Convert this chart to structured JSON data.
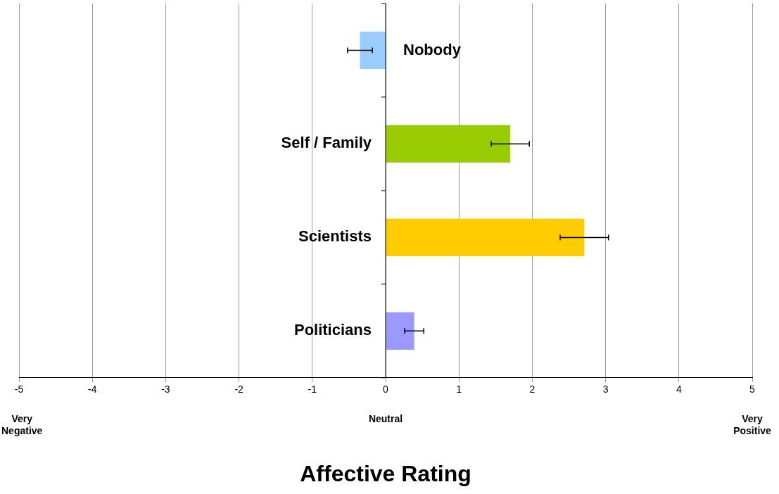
{
  "chart_data": {
    "type": "bar",
    "orientation": "horizontal",
    "xlabel": "Affective Rating",
    "categories": [
      "Nobody",
      "Self / Family",
      "Scientists",
      "Politicians"
    ],
    "values": [
      -0.35,
      1.7,
      2.71,
      0.39
    ],
    "errors": [
      0.17,
      0.26,
      0.33,
      0.13
    ],
    "colors": [
      "#99ccff",
      "#99cc00",
      "#ffcc00",
      "#9999ff"
    ],
    "xlim": [
      -5,
      5
    ],
    "xticks": [
      -5,
      -4,
      -3,
      -2,
      -1,
      0,
      1,
      2,
      3,
      4,
      5
    ],
    "grid": "x",
    "legend": false,
    "annotations": [
      "Very Negative",
      "Neutral",
      "Very Positive"
    ]
  }
}
